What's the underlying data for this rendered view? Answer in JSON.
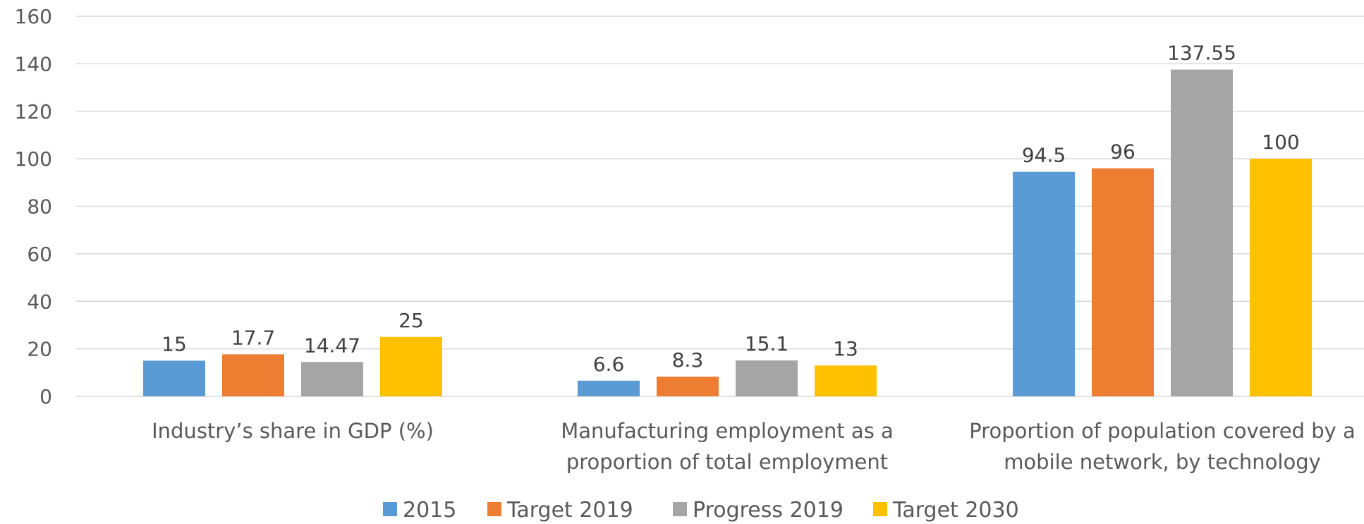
{
  "chart_data": {
    "type": "bar",
    "categories": [
      [
        "Industry’s share in GDP (%)"
      ],
      [
        "Manufacturing employment as a",
        "proportion of total employment"
      ],
      [
        "Proportion of population covered by a",
        "mobile network, by technology"
      ]
    ],
    "series": [
      {
        "name": "2015",
        "values": [
          15,
          6.6,
          94.5
        ],
        "labels": [
          "15",
          "6.6",
          "94.5"
        ]
      },
      {
        "name": "Target 2019",
        "values": [
          17.7,
          8.3,
          96
        ],
        "labels": [
          "17.7",
          "8.3",
          "96"
        ]
      },
      {
        "name": "Progress 2019",
        "values": [
          14.47,
          15.1,
          137.55
        ],
        "labels": [
          "14.47",
          "15.1",
          "137.55"
        ]
      },
      {
        "name": "Target 2030",
        "values": [
          25,
          13,
          100
        ],
        "labels": [
          "25",
          "13",
          "100"
        ]
      }
    ],
    "colors": [
      "#5b9bd5",
      "#ed7d31",
      "#a5a5a5",
      "#ffc000"
    ],
    "ylim": [
      0,
      160
    ],
    "yticks": [
      "0",
      "20",
      "40",
      "60",
      "80",
      "100",
      "120",
      "140",
      "160"
    ],
    "grid": true,
    "legend": "bottom"
  }
}
